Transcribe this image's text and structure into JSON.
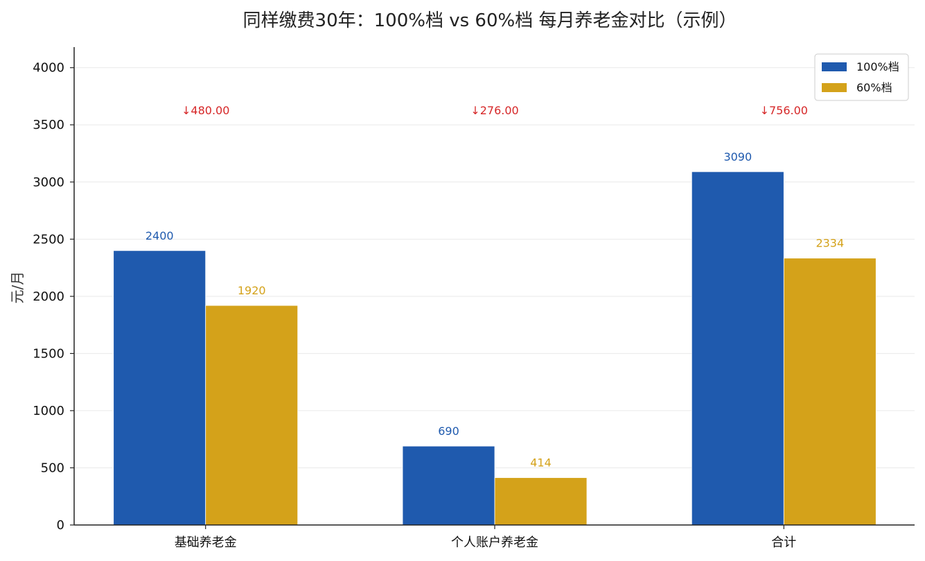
{
  "chart_data": {
    "type": "bar",
    "title": "同样缴费30年：100%档 vs 60%档 每月养老金对比（示例）",
    "xlabel": "",
    "ylabel": "元/月",
    "categories": [
      "基础养老金",
      "个人账户养老金",
      "合计"
    ],
    "series": [
      {
        "name": "100%档",
        "values": [
          2400,
          690,
          3090
        ],
        "color": "#1f5aae"
      },
      {
        "name": "60%档",
        "values": [
          1920,
          414,
          2334
        ],
        "color": "#d4a21a"
      }
    ],
    "bar_labels": [
      [
        "2400",
        "690",
        "3090"
      ],
      [
        "1920",
        "414",
        "2334"
      ]
    ],
    "differences": [
      "↓480.00",
      "↓276.00",
      "↓756.00"
    ],
    "difference_color": "#d62728",
    "difference_value_level": 3630,
    "ylim": [
      0,
      4180
    ],
    "yticks": [
      0,
      500,
      1000,
      1500,
      2000,
      2500,
      3000,
      3500,
      4000
    ],
    "ytick_labels": [
      "0",
      "500",
      "1000",
      "1500",
      "2000",
      "2500",
      "3000",
      "3500",
      "4000"
    ],
    "grid": true,
    "legend_position": "top-right"
  }
}
